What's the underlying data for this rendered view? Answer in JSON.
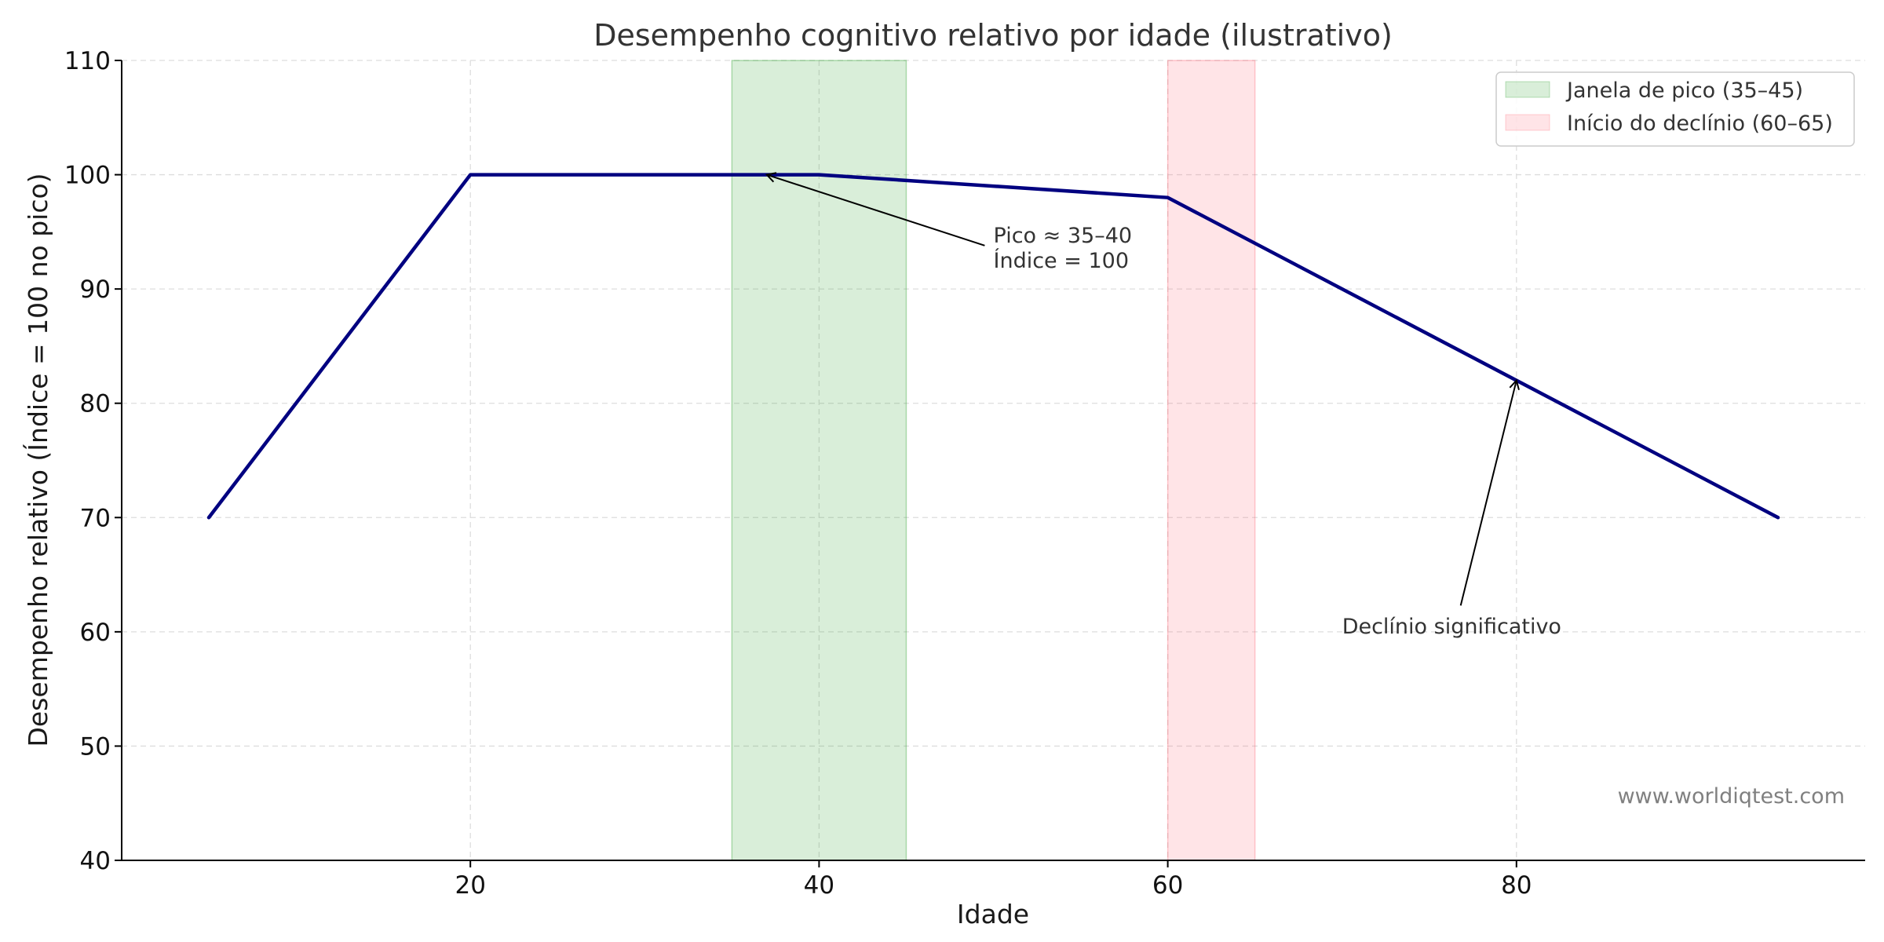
{
  "chart_data": {
    "type": "line",
    "title": "Desempenho cognitivo relativo por idade (ilustrativo)",
    "xlabel": "Idade",
    "ylabel": "Desempenho relativo (Índice = 100 no pico)",
    "xlim": [
      0,
      100
    ],
    "ylim": [
      40,
      110
    ],
    "xticks": [
      20,
      40,
      60,
      80
    ],
    "yticks": [
      40,
      50,
      60,
      70,
      80,
      90,
      100,
      110
    ],
    "grid": true,
    "legend_position": "top-right",
    "series": [
      {
        "color": "#000080",
        "points": [
          {
            "x": 5,
            "y": 70
          },
          {
            "x": 20,
            "y": 100
          },
          {
            "x": 40,
            "y": 100
          },
          {
            "x": 60,
            "y": 98
          },
          {
            "x": 95,
            "y": 70
          }
        ]
      }
    ],
    "spans": [
      {
        "label": "Janela de pico (35–45)",
        "x0": 35,
        "x1": 45,
        "color": "#2ca02c",
        "opacity": 0.18
      },
      {
        "label": "Início do declínio (60–65)",
        "x0": 60,
        "x1": 65,
        "color": "#ff6b78",
        "opacity": 0.18
      }
    ],
    "annotations": [
      {
        "lines": [
          "Pico ≈ 35–40",
          "Índice = 100"
        ],
        "text_at": {
          "x": 50,
          "y": 92
        },
        "arrow_to": {
          "x": 37,
          "y": 100
        },
        "arrow_from": {
          "x": 49.5,
          "y": 93.8
        }
      },
      {
        "lines": [
          "Declínio significativo"
        ],
        "text_at": {
          "x": 70,
          "y": 60
        },
        "arrow_to": {
          "x": 80,
          "y": 82
        },
        "arrow_from": {
          "x": 76.8,
          "y": 62.3
        }
      }
    ]
  },
  "watermark": "www.worldiqtest.com"
}
